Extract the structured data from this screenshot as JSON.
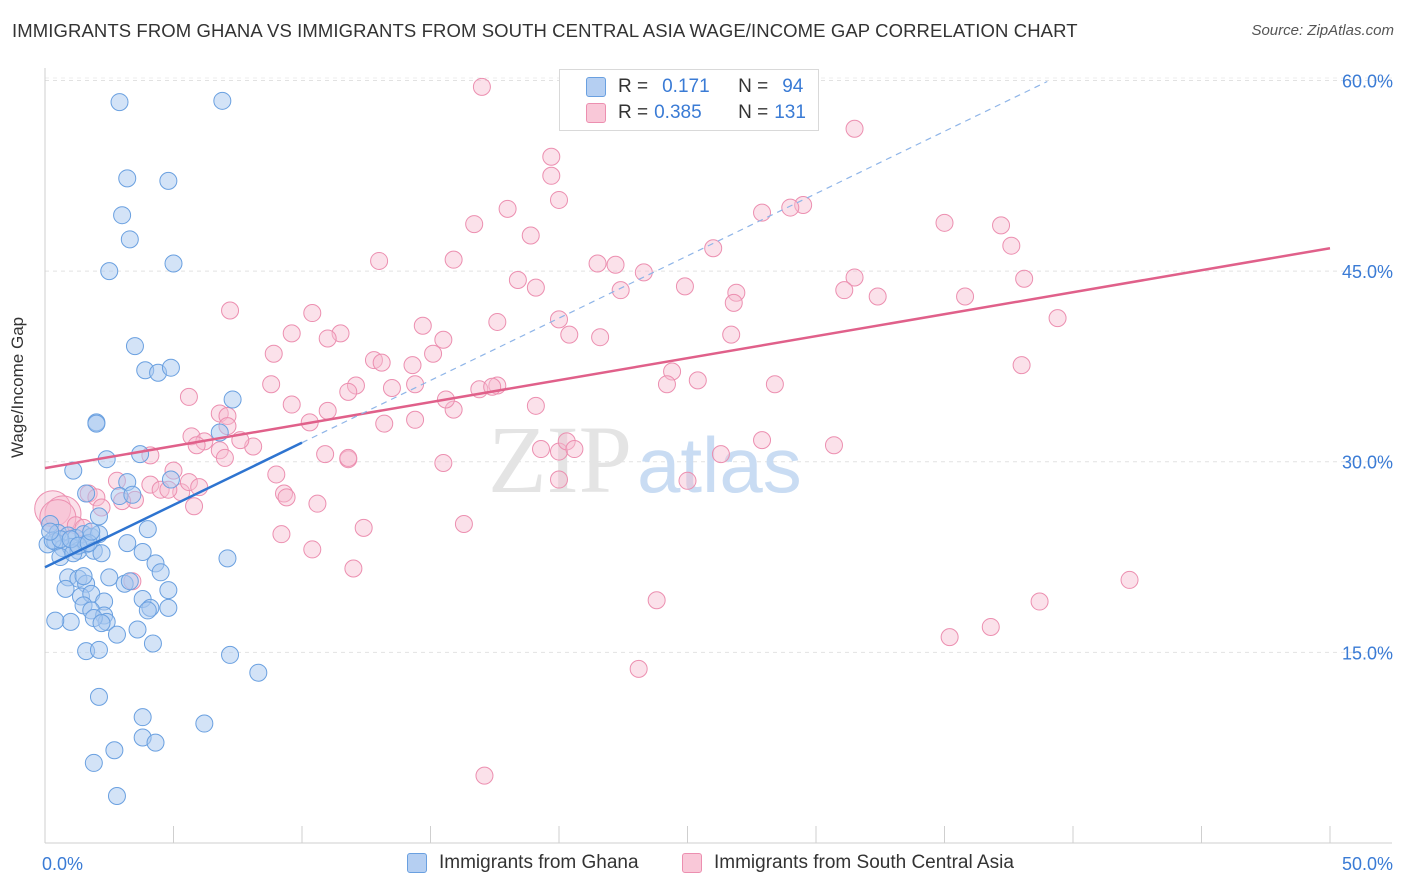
{
  "header": {
    "title": "IMMIGRANTS FROM GHANA VS IMMIGRANTS FROM SOUTH CENTRAL ASIA WAGE/INCOME GAP CORRELATION CHART",
    "source": "Source: ZipAtlas.com"
  },
  "legend": {
    "r_label": "R =",
    "n_label": "N =",
    "rows": [
      {
        "r": "0.171",
        "n": "94"
      },
      {
        "r": "0.385",
        "n": "131"
      }
    ]
  },
  "watermark": {
    "zip": "ZIP",
    "atlas": "atlas"
  },
  "colors": {
    "ghana_fill": "#a8c8f0",
    "ghana_stroke": "#6aa0e0",
    "ghana_line": "#2e74d0",
    "sca_fill": "#f7bcd0",
    "sca_stroke": "#ec8fb0",
    "sca_line": "#e0608a",
    "axis_text": "#3a7bd5"
  },
  "chart_data": {
    "type": "scatter",
    "title": "IMMIGRANTS FROM GHANA VS IMMIGRANTS FROM SOUTH CENTRAL ASIA WAGE/INCOME GAP CORRELATION CHART",
    "xlabel": "",
    "ylabel": "Wage/Income Gap",
    "xlim": [
      0,
      50
    ],
    "ylim": [
      0,
      63
    ],
    "x_tick_labels": [
      "0.0%",
      "50.0%"
    ],
    "y_ticks": [
      15,
      30,
      45,
      60
    ],
    "y_tick_labels": [
      "15.0%",
      "30.0%",
      "45.0%",
      "60.0%"
    ],
    "grid": true,
    "legend_position": "top-center",
    "series": [
      {
        "name": "Immigrants from Ghana",
        "r": 0.171,
        "n": 94,
        "trend": {
          "x": [
            0,
            10
          ],
          "y": [
            21.7,
            31.5
          ]
        },
        "trend_extension": {
          "x": [
            10,
            39
          ]
        },
        "points": [
          [
            2.9,
            58.3
          ],
          [
            6.9,
            58.4
          ],
          [
            3.2,
            52.3
          ],
          [
            4.8,
            52.1
          ],
          [
            3.0,
            49.4
          ],
          [
            3.3,
            47.5
          ],
          [
            2.5,
            45.0
          ],
          [
            5.0,
            45.6
          ],
          [
            3.5,
            39.1
          ],
          [
            3.9,
            37.2
          ],
          [
            4.4,
            37.0
          ],
          [
            4.9,
            37.4
          ],
          [
            7.3,
            34.9
          ],
          [
            2.0,
            33.1
          ],
          [
            2.0,
            33.0
          ],
          [
            6.8,
            32.3
          ],
          [
            2.4,
            30.2
          ],
          [
            3.7,
            30.6
          ],
          [
            1.1,
            29.3
          ],
          [
            3.2,
            28.4
          ],
          [
            4.9,
            28.6
          ],
          [
            1.6,
            27.5
          ],
          [
            2.9,
            27.3
          ],
          [
            3.4,
            27.4
          ],
          [
            2.1,
            25.7
          ],
          [
            4.0,
            24.7
          ],
          [
            0.2,
            25.1
          ],
          [
            0.5,
            24.4
          ],
          [
            0.9,
            24.2
          ],
          [
            1.2,
            24.0
          ],
          [
            1.5,
            24.3
          ],
          [
            1.8,
            24.1
          ],
          [
            2.1,
            24.3
          ],
          [
            0.1,
            23.5
          ],
          [
            0.4,
            23.7
          ],
          [
            0.7,
            23.2
          ],
          [
            1.0,
            23.3
          ],
          [
            1.3,
            23.0
          ],
          [
            1.6,
            23.5
          ],
          [
            1.9,
            23.0
          ],
          [
            2.2,
            22.8
          ],
          [
            0.6,
            22.5
          ],
          [
            1.1,
            22.8
          ],
          [
            3.2,
            23.6
          ],
          [
            3.8,
            22.9
          ],
          [
            4.3,
            22.0
          ],
          [
            7.1,
            22.4
          ],
          [
            0.9,
            20.9
          ],
          [
            1.3,
            20.8
          ],
          [
            1.6,
            20.4
          ],
          [
            1.5,
            21.0
          ],
          [
            2.5,
            20.9
          ],
          [
            4.5,
            21.3
          ],
          [
            3.1,
            20.4
          ],
          [
            3.3,
            20.6
          ],
          [
            0.8,
            20.0
          ],
          [
            1.4,
            19.4
          ],
          [
            1.8,
            19.6
          ],
          [
            2.3,
            19.0
          ],
          [
            3.8,
            19.2
          ],
          [
            4.8,
            19.9
          ],
          [
            1.5,
            18.7
          ],
          [
            1.8,
            18.3
          ],
          [
            4.1,
            18.5
          ],
          [
            4.8,
            18.5
          ],
          [
            4.0,
            18.3
          ],
          [
            2.3,
            17.9
          ],
          [
            2.4,
            17.4
          ],
          [
            1.9,
            17.7
          ],
          [
            1.0,
            17.4
          ],
          [
            0.4,
            17.5
          ],
          [
            2.2,
            17.3
          ],
          [
            2.8,
            16.4
          ],
          [
            3.6,
            16.8
          ],
          [
            4.2,
            15.7
          ],
          [
            1.6,
            15.1
          ],
          [
            2.1,
            15.2
          ],
          [
            7.2,
            14.8
          ],
          [
            8.3,
            13.4
          ],
          [
            2.1,
            11.5
          ],
          [
            3.8,
            9.9
          ],
          [
            6.2,
            9.4
          ],
          [
            3.8,
            8.3
          ],
          [
            4.3,
            7.9
          ],
          [
            2.7,
            7.3
          ],
          [
            1.9,
            6.3
          ],
          [
            2.8,
            3.7
          ],
          [
            0.3,
            23.8
          ],
          [
            0.6,
            23.9
          ],
          [
            1.0,
            23.9
          ],
          [
            1.3,
            23.4
          ],
          [
            0.2,
            24.5
          ],
          [
            1.7,
            23.6
          ],
          [
            1.8,
            24.5
          ]
        ]
      },
      {
        "name": "Immigrants from South Central Asia",
        "r": 0.385,
        "n": 131,
        "trend": {
          "x": [
            0,
            50
          ],
          "y": [
            29.5,
            46.8
          ]
        },
        "points": [
          [
            17.0,
            59.5
          ],
          [
            31.5,
            56.2
          ],
          [
            19.7,
            54.0
          ],
          [
            19.7,
            52.5
          ],
          [
            20.0,
            50.6
          ],
          [
            18.0,
            49.9
          ],
          [
            27.9,
            49.6
          ],
          [
            29.5,
            50.2
          ],
          [
            29.0,
            50.0
          ],
          [
            37.2,
            48.6
          ],
          [
            35.0,
            48.8
          ],
          [
            16.7,
            48.7
          ],
          [
            18.9,
            47.8
          ],
          [
            37.6,
            47.0
          ],
          [
            15.9,
            45.9
          ],
          [
            26.0,
            46.8
          ],
          [
            21.5,
            45.6
          ],
          [
            13.0,
            45.8
          ],
          [
            22.2,
            45.5
          ],
          [
            18.4,
            44.3
          ],
          [
            23.3,
            44.9
          ],
          [
            24.9,
            43.8
          ],
          [
            31.5,
            44.5
          ],
          [
            38.1,
            44.4
          ],
          [
            19.1,
            43.7
          ],
          [
            31.1,
            43.5
          ],
          [
            22.4,
            43.5
          ],
          [
            26.9,
            43.3
          ],
          [
            32.4,
            43.0
          ],
          [
            35.8,
            43.0
          ],
          [
            7.2,
            41.9
          ],
          [
            10.4,
            41.7
          ],
          [
            26.8,
            42.5
          ],
          [
            20.0,
            41.2
          ],
          [
            39.4,
            41.3
          ],
          [
            17.6,
            41.0
          ],
          [
            14.7,
            40.7
          ],
          [
            9.6,
            40.1
          ],
          [
            11.5,
            40.1
          ],
          [
            15.5,
            39.6
          ],
          [
            20.4,
            40.0
          ],
          [
            26.7,
            40.0
          ],
          [
            11.0,
            39.7
          ],
          [
            21.6,
            39.8
          ],
          [
            8.9,
            38.5
          ],
          [
            15.1,
            38.5
          ],
          [
            12.8,
            38.0
          ],
          [
            13.1,
            37.8
          ],
          [
            14.3,
            37.6
          ],
          [
            24.4,
            37.1
          ],
          [
            38.0,
            37.6
          ],
          [
            12.1,
            36.0
          ],
          [
            11.8,
            35.5
          ],
          [
            13.5,
            35.8
          ],
          [
            16.9,
            35.7
          ],
          [
            17.6,
            36.0
          ],
          [
            24.2,
            36.1
          ],
          [
            25.4,
            36.4
          ],
          [
            28.4,
            36.1
          ],
          [
            8.8,
            36.1
          ],
          [
            14.4,
            36.1
          ],
          [
            17.4,
            35.9
          ],
          [
            5.6,
            35.1
          ],
          [
            9.6,
            34.5
          ],
          [
            11.0,
            34.0
          ],
          [
            15.9,
            34.1
          ],
          [
            19.1,
            34.4
          ],
          [
            15.6,
            34.9
          ],
          [
            6.8,
            33.8
          ],
          [
            7.1,
            33.6
          ],
          [
            10.3,
            33.1
          ],
          [
            13.2,
            33.0
          ],
          [
            14.4,
            33.3
          ],
          [
            7.1,
            32.8
          ],
          [
            5.7,
            32.0
          ],
          [
            6.2,
            31.6
          ],
          [
            8.1,
            31.2
          ],
          [
            7.6,
            31.7
          ],
          [
            5.9,
            31.3
          ],
          [
            6.8,
            30.9
          ],
          [
            10.9,
            30.6
          ],
          [
            19.3,
            31.0
          ],
          [
            20.0,
            30.8
          ],
          [
            20.3,
            31.6
          ],
          [
            26.3,
            30.6
          ],
          [
            30.7,
            31.3
          ],
          [
            7.0,
            30.3
          ],
          [
            11.8,
            30.2
          ],
          [
            15.5,
            29.9
          ],
          [
            9.0,
            29.0
          ],
          [
            5.0,
            29.3
          ],
          [
            9.3,
            27.5
          ],
          [
            5.3,
            27.6
          ],
          [
            5.6,
            28.4
          ],
          [
            6.0,
            28.0
          ],
          [
            1.7,
            27.5
          ],
          [
            2.0,
            27.2
          ],
          [
            2.8,
            28.5
          ],
          [
            3.5,
            27.0
          ],
          [
            4.1,
            28.2
          ],
          [
            4.5,
            27.8
          ],
          [
            9.4,
            27.2
          ],
          [
            10.6,
            26.7
          ],
          [
            5.8,
            26.5
          ],
          [
            0.3,
            26.3
          ],
          [
            0.7,
            25.9
          ],
          [
            0.5,
            25.6
          ],
          [
            1.2,
            25.0
          ],
          [
            1.5,
            24.8
          ],
          [
            2.2,
            26.4
          ],
          [
            3.0,
            26.9
          ],
          [
            16.3,
            25.1
          ],
          [
            11.8,
            30.3
          ],
          [
            4.1,
            30.5
          ],
          [
            4.8,
            27.8
          ],
          [
            10.4,
            23.1
          ],
          [
            12.0,
            21.6
          ],
          [
            3.4,
            20.6
          ],
          [
            20.0,
            28.6
          ],
          [
            25.0,
            28.5
          ],
          [
            20.6,
            31.0
          ],
          [
            23.8,
            19.1
          ],
          [
            27.9,
            31.7
          ],
          [
            42.2,
            20.7
          ],
          [
            38.7,
            19.0
          ],
          [
            35.2,
            16.2
          ],
          [
            36.8,
            17.0
          ],
          [
            23.1,
            13.7
          ],
          [
            17.1,
            5.3
          ],
          [
            9.2,
            24.3
          ],
          [
            12.4,
            24.8
          ]
        ]
      }
    ]
  },
  "bottom_legend": {
    "items": [
      "Immigrants from Ghana",
      "Immigrants from South Central Asia"
    ]
  }
}
